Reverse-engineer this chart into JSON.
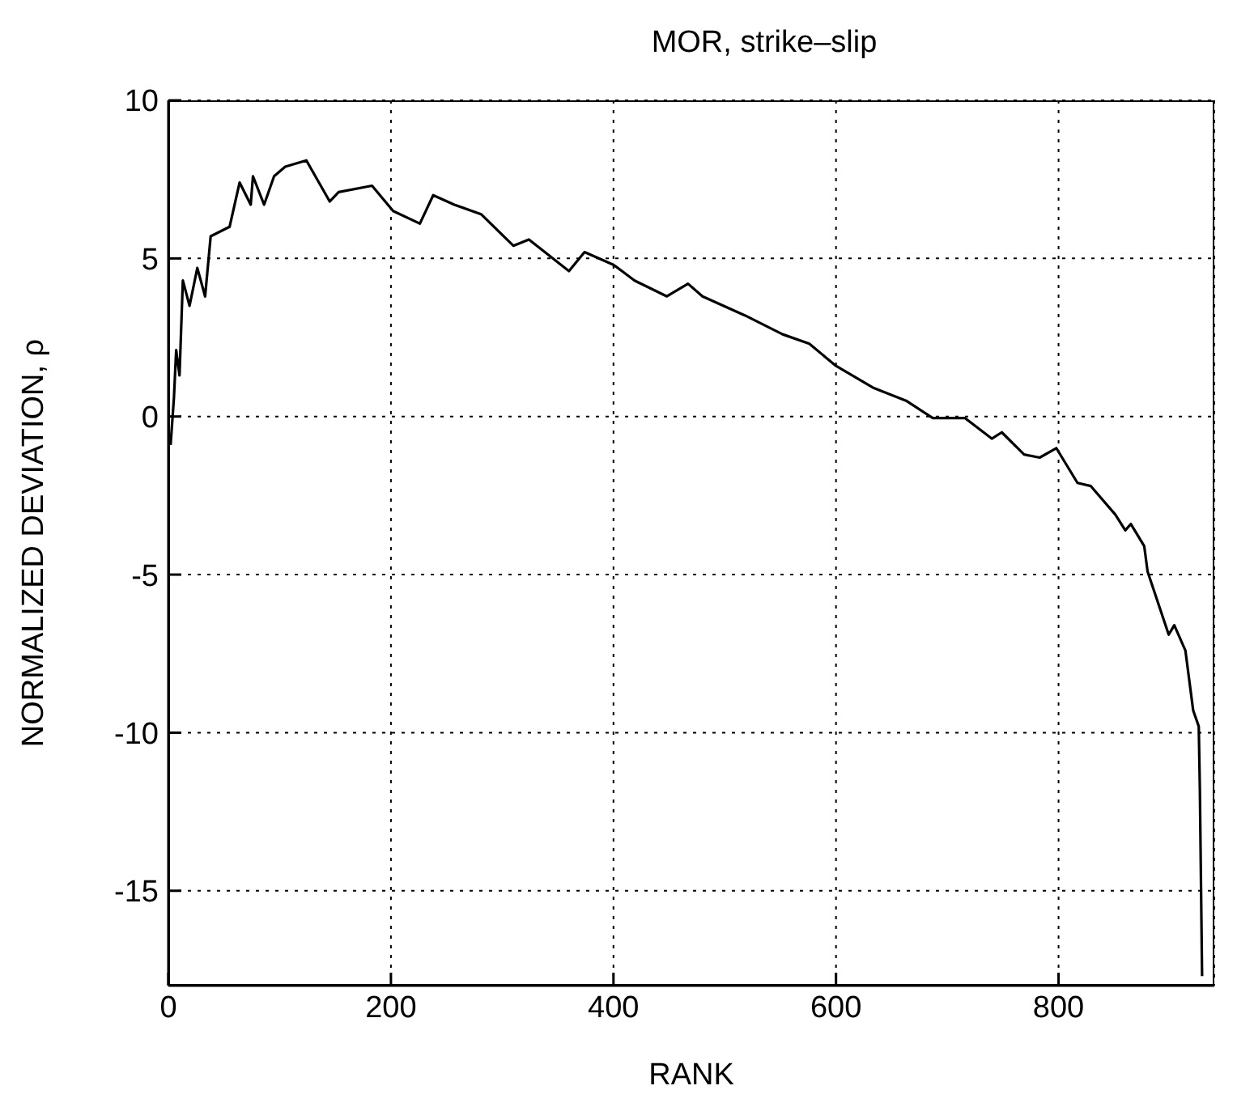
{
  "chart_data": {
    "type": "line",
    "title": "MOR, strike–slip",
    "xlabel": "RANK",
    "ylabel": "NORMALIZED DEVIATION, ρ",
    "xlim": [
      0,
      940
    ],
    "xticks": [
      0,
      200,
      400,
      600,
      800
    ],
    "ylim": [
      -18,
      10
    ],
    "yticks": [
      -15,
      -10,
      -5,
      0,
      5,
      10
    ],
    "grid": true,
    "marker": "none",
    "line_style": "solid",
    "series": [
      {
        "color": "#000000",
        "x": [
          2,
          5,
          7,
          10,
          13,
          19,
          26,
          33,
          38,
          55,
          64,
          74,
          76,
          86,
          95,
          105,
          124,
          145,
          153,
          183,
          202,
          226,
          238,
          257,
          281,
          310,
          324,
          360,
          374,
          400,
          419,
          448,
          467,
          480,
          518,
          552,
          576,
          600,
          634,
          663,
          687,
          716,
          740,
          749,
          769,
          783,
          798,
          817,
          829,
          851,
          860,
          865,
          877,
          880,
          899,
          904,
          914,
          921,
          926,
          927,
          929
        ],
        "values": [
          -0.9,
          0.6,
          2.1,
          1.3,
          4.3,
          3.5,
          4.7,
          3.8,
          5.7,
          6.0,
          7.4,
          6.7,
          7.6,
          6.7,
          7.6,
          7.9,
          8.1,
          6.8,
          7.1,
          7.3,
          6.5,
          6.1,
          7.0,
          6.7,
          6.4,
          5.4,
          5.6,
          4.6,
          5.2,
          4.8,
          4.3,
          3.8,
          4.2,
          3.8,
          3.2,
          2.6,
          2.3,
          1.6,
          0.9,
          0.5,
          -0.05,
          -0.05,
          -0.7,
          -0.5,
          -1.2,
          -1.3,
          -1.0,
          -2.1,
          -2.2,
          -3.1,
          -3.6,
          -3.4,
          -4.1,
          -4.9,
          -6.9,
          -6.6,
          -7.4,
          -9.3,
          -9.8,
          -11.8,
          -17.7
        ]
      }
    ]
  }
}
